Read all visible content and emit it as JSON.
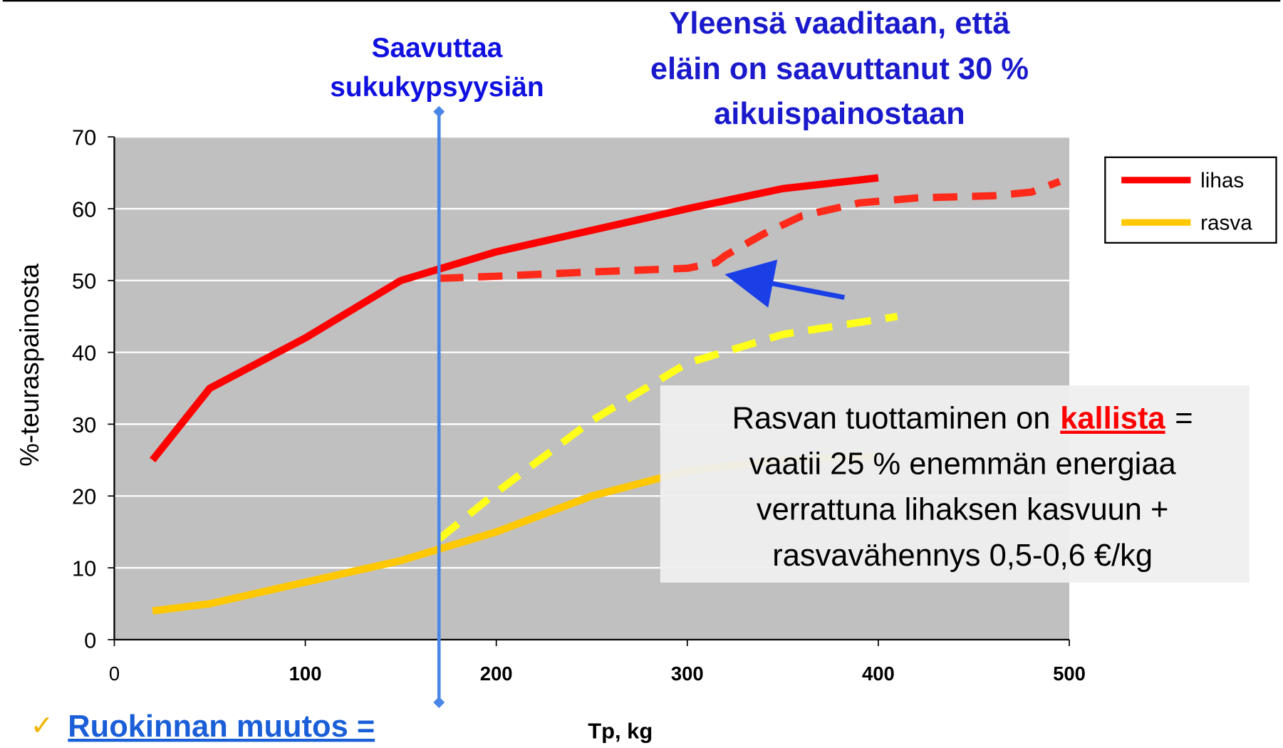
{
  "chart_data": {
    "type": "line",
    "y_label": "%-teuraspainosta",
    "x_label": "Tp, kg",
    "xlim": [
      0,
      500
    ],
    "xticks": [
      0,
      100,
      200,
      300,
      400,
      500
    ],
    "ylim": [
      0,
      70
    ],
    "yticks": [
      0,
      10,
      20,
      30,
      40,
      50,
      60,
      70
    ],
    "grid": true,
    "legend": "right",
    "series": [
      {
        "name": "lihas",
        "color": "#ff0000",
        "x": [
          20,
          50,
          100,
          150,
          200,
          250,
          300,
          350,
          400
        ],
        "values": [
          25,
          35,
          42,
          50,
          54,
          57,
          60,
          62.8,
          64.3
        ]
      },
      {
        "name": "rasva",
        "color": "#ffc800",
        "x": [
          20,
          50,
          100,
          150,
          200,
          250,
          300,
          350,
          400
        ],
        "values": [
          4,
          5,
          8,
          11,
          15,
          20,
          23.5,
          25,
          25.5
        ]
      },
      {
        "color": "#ff2a1a",
        "dashed": true,
        "x": [
          170,
          200,
          250,
          300,
          315,
          320,
          340,
          360,
          390,
          420,
          460,
          480,
          495
        ],
        "values": [
          50.3,
          50.6,
          51.2,
          51.7,
          52.5,
          53.5,
          56.5,
          59,
          60.8,
          61.5,
          61.8,
          62.3,
          63.8
        ]
      },
      {
        "color": "#ffff1a",
        "dashed": true,
        "x": [
          170,
          200,
          250,
          300,
          350,
          410
        ],
        "values": [
          14,
          20.5,
          30.5,
          38.5,
          42.5,
          45
        ]
      }
    ],
    "vline": {
      "x": 170,
      "color": "#4a86e8"
    },
    "annotations": [
      {
        "lines": [
          "Saavuttaa",
          "sukukypsyysiän"
        ]
      },
      {
        "lines": [
          "Yleensä vaaditaan, että",
          "eläin on saavuttanut 30 %",
          "aikuispainostaan"
        ]
      }
    ],
    "box": {
      "first_line": [
        "Rasvan tuottaminen on",
        "kallista",
        "="
      ],
      "lines": [
        "vaatii 25 % enemmän energiaa",
        "verrattuna lihaksen kasvuun +",
        "rasvavähennys 0,5-0,6 €/kg"
      ]
    },
    "bullet": {
      "mark": "✓",
      "text": "Ruokinnan muutos ="
    }
  }
}
